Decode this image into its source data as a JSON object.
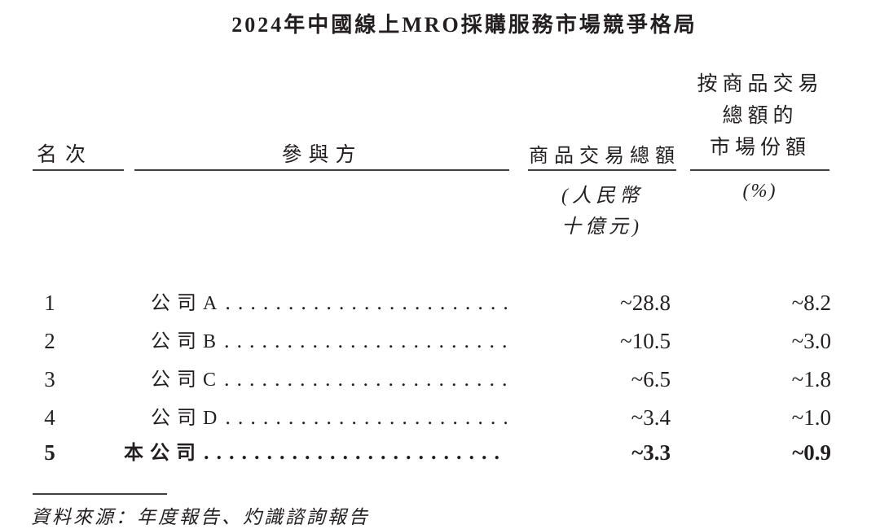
{
  "title": "2024年中國線上MRO採購服務市場競爭格局",
  "colors": {
    "background": "#ffffff",
    "text": "#231f20",
    "rule": "#3f3f3f"
  },
  "table": {
    "headers": {
      "rank": "名次",
      "participant": "參與方",
      "gmv": "商品交易總額",
      "share_lines": [
        "按商品交易",
        "總額的",
        "市場份額"
      ],
      "gmv_unit_lines": [
        "(人民幣",
        "十億元)"
      ],
      "share_unit": "(%)"
    },
    "rows": [
      {
        "rank": "1",
        "name": "公司A",
        "gmv": "~28.8",
        "share": "~8.2"
      },
      {
        "rank": "2",
        "name": "公司B",
        "gmv": "~10.5",
        "share": "~3.0"
      },
      {
        "rank": "3",
        "name": "公司C",
        "gmv": "~6.5",
        "share": "~1.8"
      },
      {
        "rank": "4",
        "name": "公司D",
        "gmv": "~3.4",
        "share": "~1.0"
      },
      {
        "rank": "5",
        "name": "本公司",
        "gmv": "~3.3",
        "share": "~0.9"
      }
    ]
  },
  "footer": {
    "source": "資料來源：年度報告、灼識諮詢報告"
  },
  "dots": "..................................................................."
}
